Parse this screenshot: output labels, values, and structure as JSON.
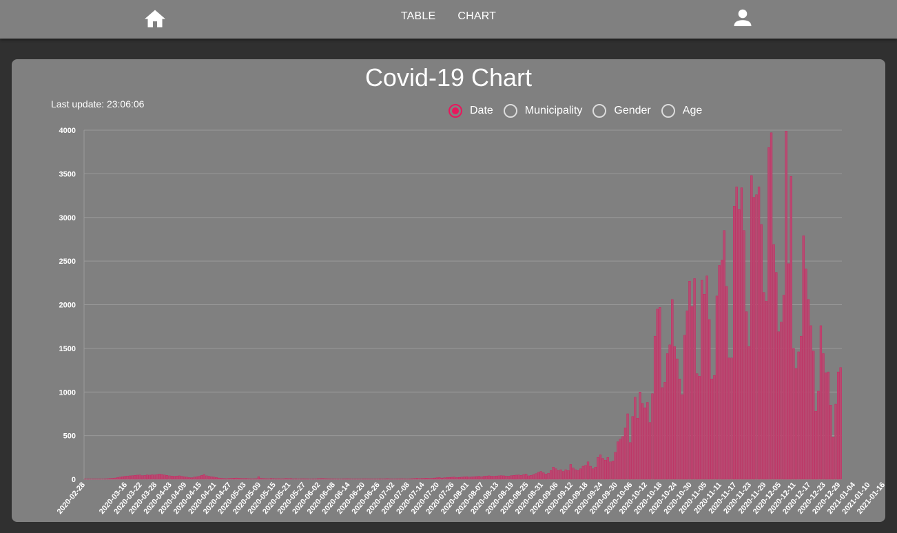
{
  "header": {
    "home_icon": "home-icon",
    "nav": [
      {
        "label": "TABLE"
      },
      {
        "label": "CHART"
      }
    ],
    "user_icon": "account-icon"
  },
  "card": {
    "title": "Covid-19 Chart",
    "last_update": "Last update: 23:06:06",
    "radio_options": [
      {
        "label": "Date",
        "checked": true
      },
      {
        "label": "Municipality",
        "checked": false
      },
      {
        "label": "Gender",
        "checked": false
      },
      {
        "label": "Age",
        "checked": false
      }
    ]
  },
  "colors": {
    "bar_fill": "#b84a72",
    "bar_stroke": "#d21c5c",
    "accent": "#e8175d"
  },
  "chart_data": {
    "type": "bar",
    "title": "",
    "xlabel": "",
    "ylabel": "",
    "ylim": [
      0,
      4000
    ],
    "yticks": [
      0,
      500,
      1000,
      1500,
      2000,
      2500,
      3000,
      3500,
      4000
    ],
    "grid": true,
    "start_date": "2020-02-28",
    "tick_labels": [
      "2020-02-28",
      "2020-03-16",
      "2020-03-22",
      "2020-03-28",
      "2020-04-03",
      "2020-04-09",
      "2020-04-15",
      "2020-04-21",
      "2020-04-27",
      "2020-05-03",
      "2020-05-09",
      "2020-05-15",
      "2020-05-21",
      "2020-05-27",
      "2020-06-02",
      "2020-06-08",
      "2020-06-14",
      "2020-06-20",
      "2020-06-26",
      "2020-07-02",
      "2020-07-08",
      "2020-07-14",
      "2020-07-20",
      "2020-07-26",
      "2020-08-01",
      "2020-08-07",
      "2020-08-13",
      "2020-08-19",
      "2020-08-25",
      "2020-08-31",
      "2020-09-06",
      "2020-09-12",
      "2020-09-18",
      "2020-09-24",
      "2020-09-30",
      "2020-10-06",
      "2020-10-12",
      "2020-10-18",
      "2020-10-24",
      "2020-10-30",
      "2020-11-05",
      "2020-11-11",
      "2020-11-17",
      "2020-11-23",
      "2020-11-29",
      "2020-12-05",
      "2020-12-11",
      "2020-12-17",
      "2020-12-23",
      "2020-12-29",
      "2021-01-04",
      "2021-01-10",
      "2021-01-16"
    ],
    "values": [
      1,
      1,
      1,
      1,
      1,
      1,
      2,
      3,
      5,
      8,
      10,
      12,
      15,
      20,
      25,
      30,
      35,
      38,
      40,
      42,
      45,
      48,
      50,
      42,
      45,
      50,
      48,
      52,
      50,
      55,
      60,
      55,
      50,
      45,
      40,
      38,
      35,
      38,
      40,
      35,
      30,
      25,
      20,
      18,
      25,
      30,
      35,
      45,
      55,
      40,
      35,
      30,
      25,
      20,
      15,
      12,
      10,
      8,
      10,
      12,
      14,
      15,
      12,
      10,
      9,
      10,
      8,
      6,
      7,
      8,
      30,
      12,
      9,
      8,
      7,
      10,
      9,
      7,
      8,
      6,
      7,
      10,
      8,
      9,
      6,
      7,
      5,
      6,
      7,
      6,
      5,
      4,
      5,
      6,
      8,
      9,
      10,
      8,
      7,
      6,
      5,
      5,
      4,
      3,
      5,
      6,
      7,
      5,
      4,
      3,
      3,
      4,
      5,
      6,
      5,
      4,
      3,
      4,
      5,
      6,
      5,
      6,
      8,
      5,
      4,
      3,
      5,
      6,
      7,
      5,
      4,
      6,
      8,
      10,
      12,
      9,
      10,
      12,
      14,
      10,
      12,
      15,
      18,
      20,
      15,
      18,
      20,
      22,
      24,
      26,
      20,
      22,
      25,
      28,
      30,
      25,
      28,
      30,
      32,
      35,
      30,
      35,
      38,
      40,
      36,
      35,
      38,
      40,
      42,
      40,
      38,
      36,
      42,
      45,
      48,
      50,
      45,
      55,
      60,
      40,
      45,
      55,
      65,
      80,
      90,
      75,
      60,
      70,
      100,
      140,
      120,
      100,
      110,
      90,
      110,
      100,
      170,
      130,
      110,
      100,
      120,
      150,
      160,
      200,
      150,
      120,
      140,
      250,
      280,
      240,
      220,
      250,
      200,
      210,
      310,
      430,
      460,
      490,
      590,
      750,
      420,
      720,
      940,
      700,
      1000,
      870,
      820,
      880,
      650,
      980,
      1640,
      1950,
      1970,
      1050,
      1110,
      1440,
      1540,
      2060,
      1520,
      1380,
      1150,
      970,
      1650,
      1930,
      2270,
      1980,
      2300,
      1210,
      1180,
      2280,
      2120,
      2330,
      1830,
      1150,
      1190,
      2100,
      2450,
      2510,
      2850,
      2210,
      1390,
      1390,
      3130,
      3350,
      3090,
      3340,
      2850,
      1920,
      1520,
      3480,
      3230,
      3260,
      3350,
      2920,
      2140,
      2040,
      3800,
      3970,
      2690,
      2370,
      1690,
      1800,
      2110,
      3990,
      2470,
      3470,
      1500,
      1270,
      1460,
      1640,
      2790,
      2410,
      2060,
      1760,
      1470,
      780,
      1010,
      1760,
      1440,
      1220,
      1230,
      850,
      480,
      860,
      1230,
      1280
    ]
  }
}
